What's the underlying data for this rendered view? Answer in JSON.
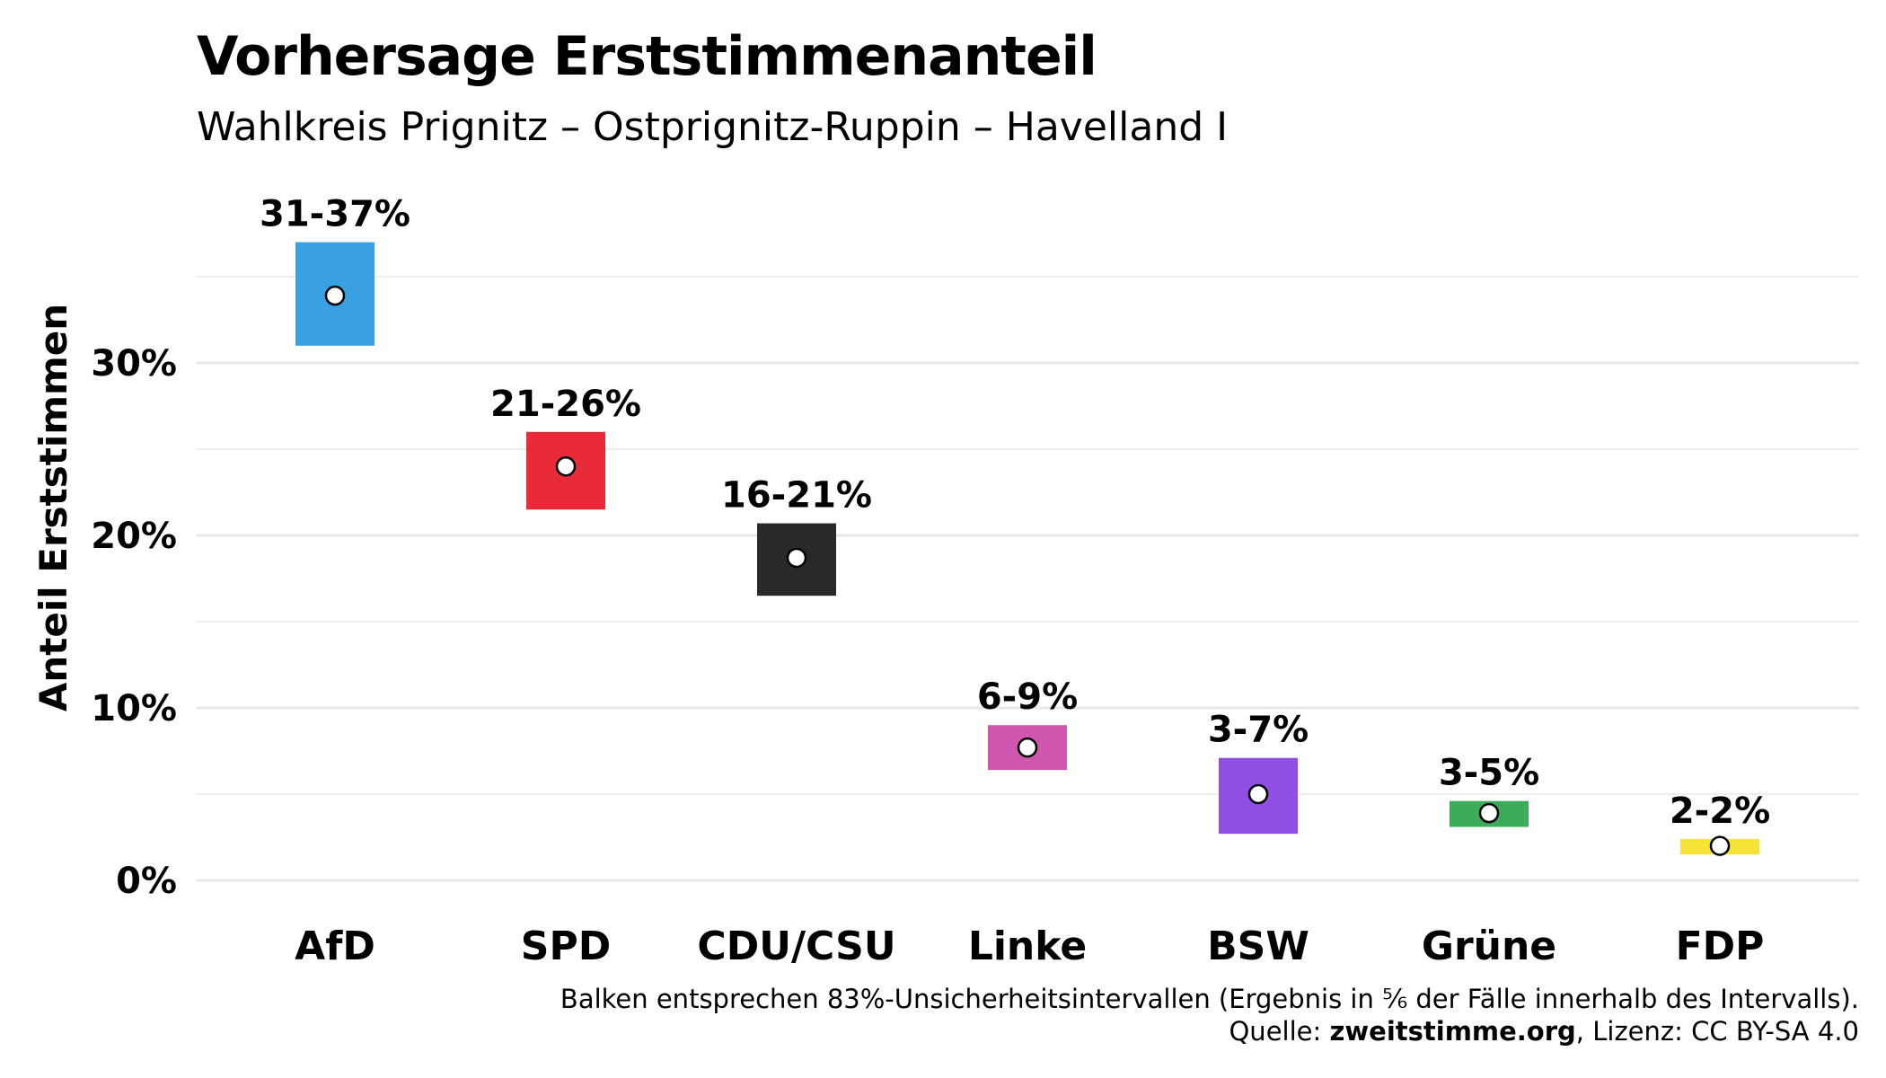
{
  "title": "Vorhersage Erststimmenanteil",
  "subtitle": "Wahlkreis Prignitz – Ostprignitz-Ruppin – Havelland I",
  "caption": {
    "line1": "Balken entsprechen 83%-Unsicherheitsintervallen (Ergebnis in ⅚ der Fälle innerhalb des Intervalls).",
    "source_prefix": "Quelle: ",
    "source_name": "zweitstimme.org",
    "license": ", Lizenz: CC BY-SA 4.0"
  },
  "chart_data": {
    "type": "bar",
    "title": "Vorhersage Erststimmenanteil",
    "subtitle": "Wahlkreis Prignitz – Ostprignitz-Ruppin – Havelland I",
    "ylabel": "Anteil Erststimmen",
    "xlabel": "",
    "ylim": [
      0,
      37
    ],
    "yticks": [
      0,
      10,
      20,
      30
    ],
    "ytick_labels": [
      "0%",
      "10%",
      "20%",
      "30%"
    ],
    "grid": true,
    "categories": [
      "AfD",
      "SPD",
      "CDU/CSU",
      "Linke",
      "BSW",
      "Grüne",
      "FDP"
    ],
    "series": [
      {
        "low": [
          31,
          21.5,
          16.5,
          6.4,
          2.7,
          3.1,
          1.5
        ],
        "high": [
          37,
          26,
          20.7,
          9.0,
          7.1,
          4.6,
          2.4
        ],
        "point": [
          33.9,
          24,
          18.7,
          7.7,
          5.0,
          3.9,
          2.0
        ],
        "labels": [
          "31-37%",
          "21-26%",
          "16-21%",
          "6-9%",
          "3-7%",
          "3-5%",
          "2-2%"
        ],
        "colors": [
          "#2E9BE0",
          "#E8202E",
          "#1E1E1E",
          "#CC4EA9",
          "#8B45E0",
          "#32A852",
          "#F4E22C"
        ]
      }
    ]
  }
}
